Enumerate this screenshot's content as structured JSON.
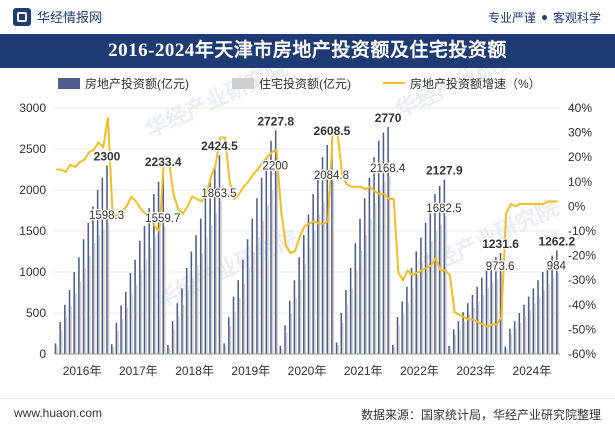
{
  "header": {
    "brand": "华经情报网",
    "tag_left": "专业严谨",
    "tag_right": "客观科学"
  },
  "footer": {
    "url": "www.huaon.com",
    "source": "数据来源：国家统计局，华经产业研究院整理"
  },
  "watermark": "华经产业研究院",
  "colors": {
    "bar_main": "#4e5d8a",
    "bar_res": "#cfcfcf",
    "line": "#f2be22",
    "title_bg": "#1f3b73"
  },
  "chart_data": {
    "type": "bar+line",
    "title": "2016-2024年天津市房地产投资额及住宅投资额",
    "legend": [
      "房地产投资额(亿元)",
      "住宅投资额(亿元)",
      "房地产投资额增速（%）"
    ],
    "y_left": {
      "min": 0,
      "max": 3000,
      "ticks": [
        "3000",
        "2500",
        "2000",
        "1500",
        "1000",
        "500",
        "0"
      ]
    },
    "y_right": {
      "min": -60,
      "max": 40,
      "ticks": [
        "40%",
        "30%",
        "20%",
        "10%",
        "0%",
        "-10%",
        "-20%",
        "-30%",
        "-40%",
        "-50%",
        "-60%"
      ]
    },
    "x_labels": [
      "2016年",
      "2017年",
      "2018年",
      "2019年",
      "2020年",
      "2021年",
      "2022年",
      "2023年",
      "2024年"
    ],
    "investment": [
      [
        130,
        390,
        600,
        780,
        1000,
        1180,
        1400,
        1600,
        1800,
        2000,
        2150,
        2300
      ],
      [
        120,
        380,
        590,
        760,
        990,
        1150,
        1380,
        1560,
        1780,
        1950,
        2100,
        2233.4
      ],
      [
        110,
        400,
        620,
        800,
        1050,
        1250,
        1450,
        1650,
        1900,
        2100,
        2300,
        2424.5
      ],
      [
        130,
        450,
        700,
        900,
        1150,
        1400,
        1650,
        1900,
        2150,
        2400,
        2600,
        2727.8
      ],
      [
        100,
        350,
        650,
        900,
        1180,
        1450,
        1700,
        1950,
        2200,
        2400,
        2550,
        2608.5
      ],
      [
        140,
        500,
        780,
        1050,
        1350,
        1650,
        1900,
        2150,
        2400,
        2600,
        2700,
        2770
      ],
      [
        110,
        450,
        640,
        820,
        1050,
        1250,
        1420,
        1600,
        1780,
        1950,
        2050,
        2127.9
      ],
      [
        100,
        300,
        400,
        510,
        620,
        720,
        820,
        930,
        1030,
        1120,
        1180,
        1231.6
      ],
      [
        90,
        310,
        400,
        500,
        600,
        700,
        800,
        900,
        1000,
        1100,
        1200,
        1262.2
      ]
    ],
    "residential": [
      [
        100,
        290,
        440,
        580,
        740,
        880,
        1050,
        1200,
        1350,
        1450,
        1520,
        1598.3
      ],
      [
        90,
        280,
        430,
        560,
        730,
        850,
        1020,
        1150,
        1300,
        1420,
        1500,
        1559.7
      ],
      [
        80,
        300,
        460,
        600,
        780,
        930,
        1080,
        1230,
        1420,
        1570,
        1720,
        1863.5
      ],
      [
        100,
        340,
        520,
        680,
        860,
        1050,
        1240,
        1430,
        1620,
        1810,
        2000,
        2200
      ],
      [
        70,
        260,
        490,
        680,
        900,
        1100,
        1300,
        1500,
        1700,
        1850,
        1980,
        2084.8
      ],
      [
        110,
        380,
        600,
        800,
        1020,
        1260,
        1450,
        1650,
        1840,
        2000,
        2100,
        2168.4
      ],
      [
        85,
        350,
        490,
        630,
        800,
        960,
        1100,
        1240,
        1380,
        1500,
        1580,
        1682.5
      ],
      [
        75,
        230,
        310,
        395,
        480,
        560,
        640,
        720,
        800,
        870,
        920,
        973.6
      ],
      [
        70,
        240,
        310,
        385,
        465,
        540,
        615,
        690,
        770,
        850,
        925,
        984
      ]
    ],
    "growth_rate": [
      [
        15,
        15,
        14,
        17,
        16,
        18,
        19,
        22,
        23,
        26,
        24,
        36
      ],
      [
        -3,
        -4,
        -2,
        0,
        4,
        2,
        -1,
        -3,
        -5,
        -8,
        -10,
        20
      ],
      [
        19,
        5,
        -1,
        -3,
        0,
        4,
        3,
        2,
        5,
        12,
        17,
        28
      ],
      [
        28,
        10,
        3,
        5,
        8,
        10,
        13,
        15,
        18,
        20,
        22,
        23
      ],
      [
        -2,
        -16,
        -19,
        -18,
        -12,
        -8,
        -7,
        -6,
        -7,
        -7,
        -6,
        31
      ],
      [
        30,
        13,
        9,
        8,
        8,
        8,
        7,
        8,
        6,
        5,
        5,
        3
      ],
      [
        3,
        -27,
        -30,
        -26,
        -28,
        -27,
        -26,
        -25,
        -24,
        -21,
        -26,
        -26
      ],
      [
        -28,
        -43,
        -44,
        -45,
        -46,
        -46,
        -47,
        -48,
        -49,
        -48,
        -48,
        -45
      ],
      [
        -3,
        1,
        0,
        1,
        1,
        1,
        1,
        1,
        1,
        2,
        2,
        2
      ]
    ],
    "labels": [
      {
        "series": "investment",
        "year": 0,
        "text": "2300"
      },
      {
        "series": "residential",
        "year": 0,
        "text": "1598.3"
      },
      {
        "series": "investment",
        "year": 1,
        "text": "2233.4"
      },
      {
        "series": "residential",
        "year": 1,
        "text": "1559.7"
      },
      {
        "series": "investment",
        "year": 2,
        "text": "2424.5"
      },
      {
        "series": "residential",
        "year": 2,
        "text": "1863.5"
      },
      {
        "series": "investment",
        "year": 3,
        "text": "2727.8"
      },
      {
        "series": "residential",
        "year": 3,
        "text": "2200"
      },
      {
        "series": "investment",
        "year": 4,
        "text": "2608.5"
      },
      {
        "series": "residential",
        "year": 4,
        "text": "2084.8"
      },
      {
        "series": "investment",
        "year": 5,
        "text": "2770"
      },
      {
        "series": "residential",
        "year": 5,
        "text": "2168.4"
      },
      {
        "series": "investment",
        "year": 6,
        "text": "2127.9"
      },
      {
        "series": "residential",
        "year": 6,
        "text": "1682.5"
      },
      {
        "series": "investment",
        "year": 7,
        "text": "1231.6"
      },
      {
        "series": "residential",
        "year": 7,
        "text": "973.6"
      },
      {
        "series": "investment",
        "year": 8,
        "text": "1262.2"
      },
      {
        "series": "residential",
        "year": 8,
        "text": "984"
      }
    ]
  }
}
